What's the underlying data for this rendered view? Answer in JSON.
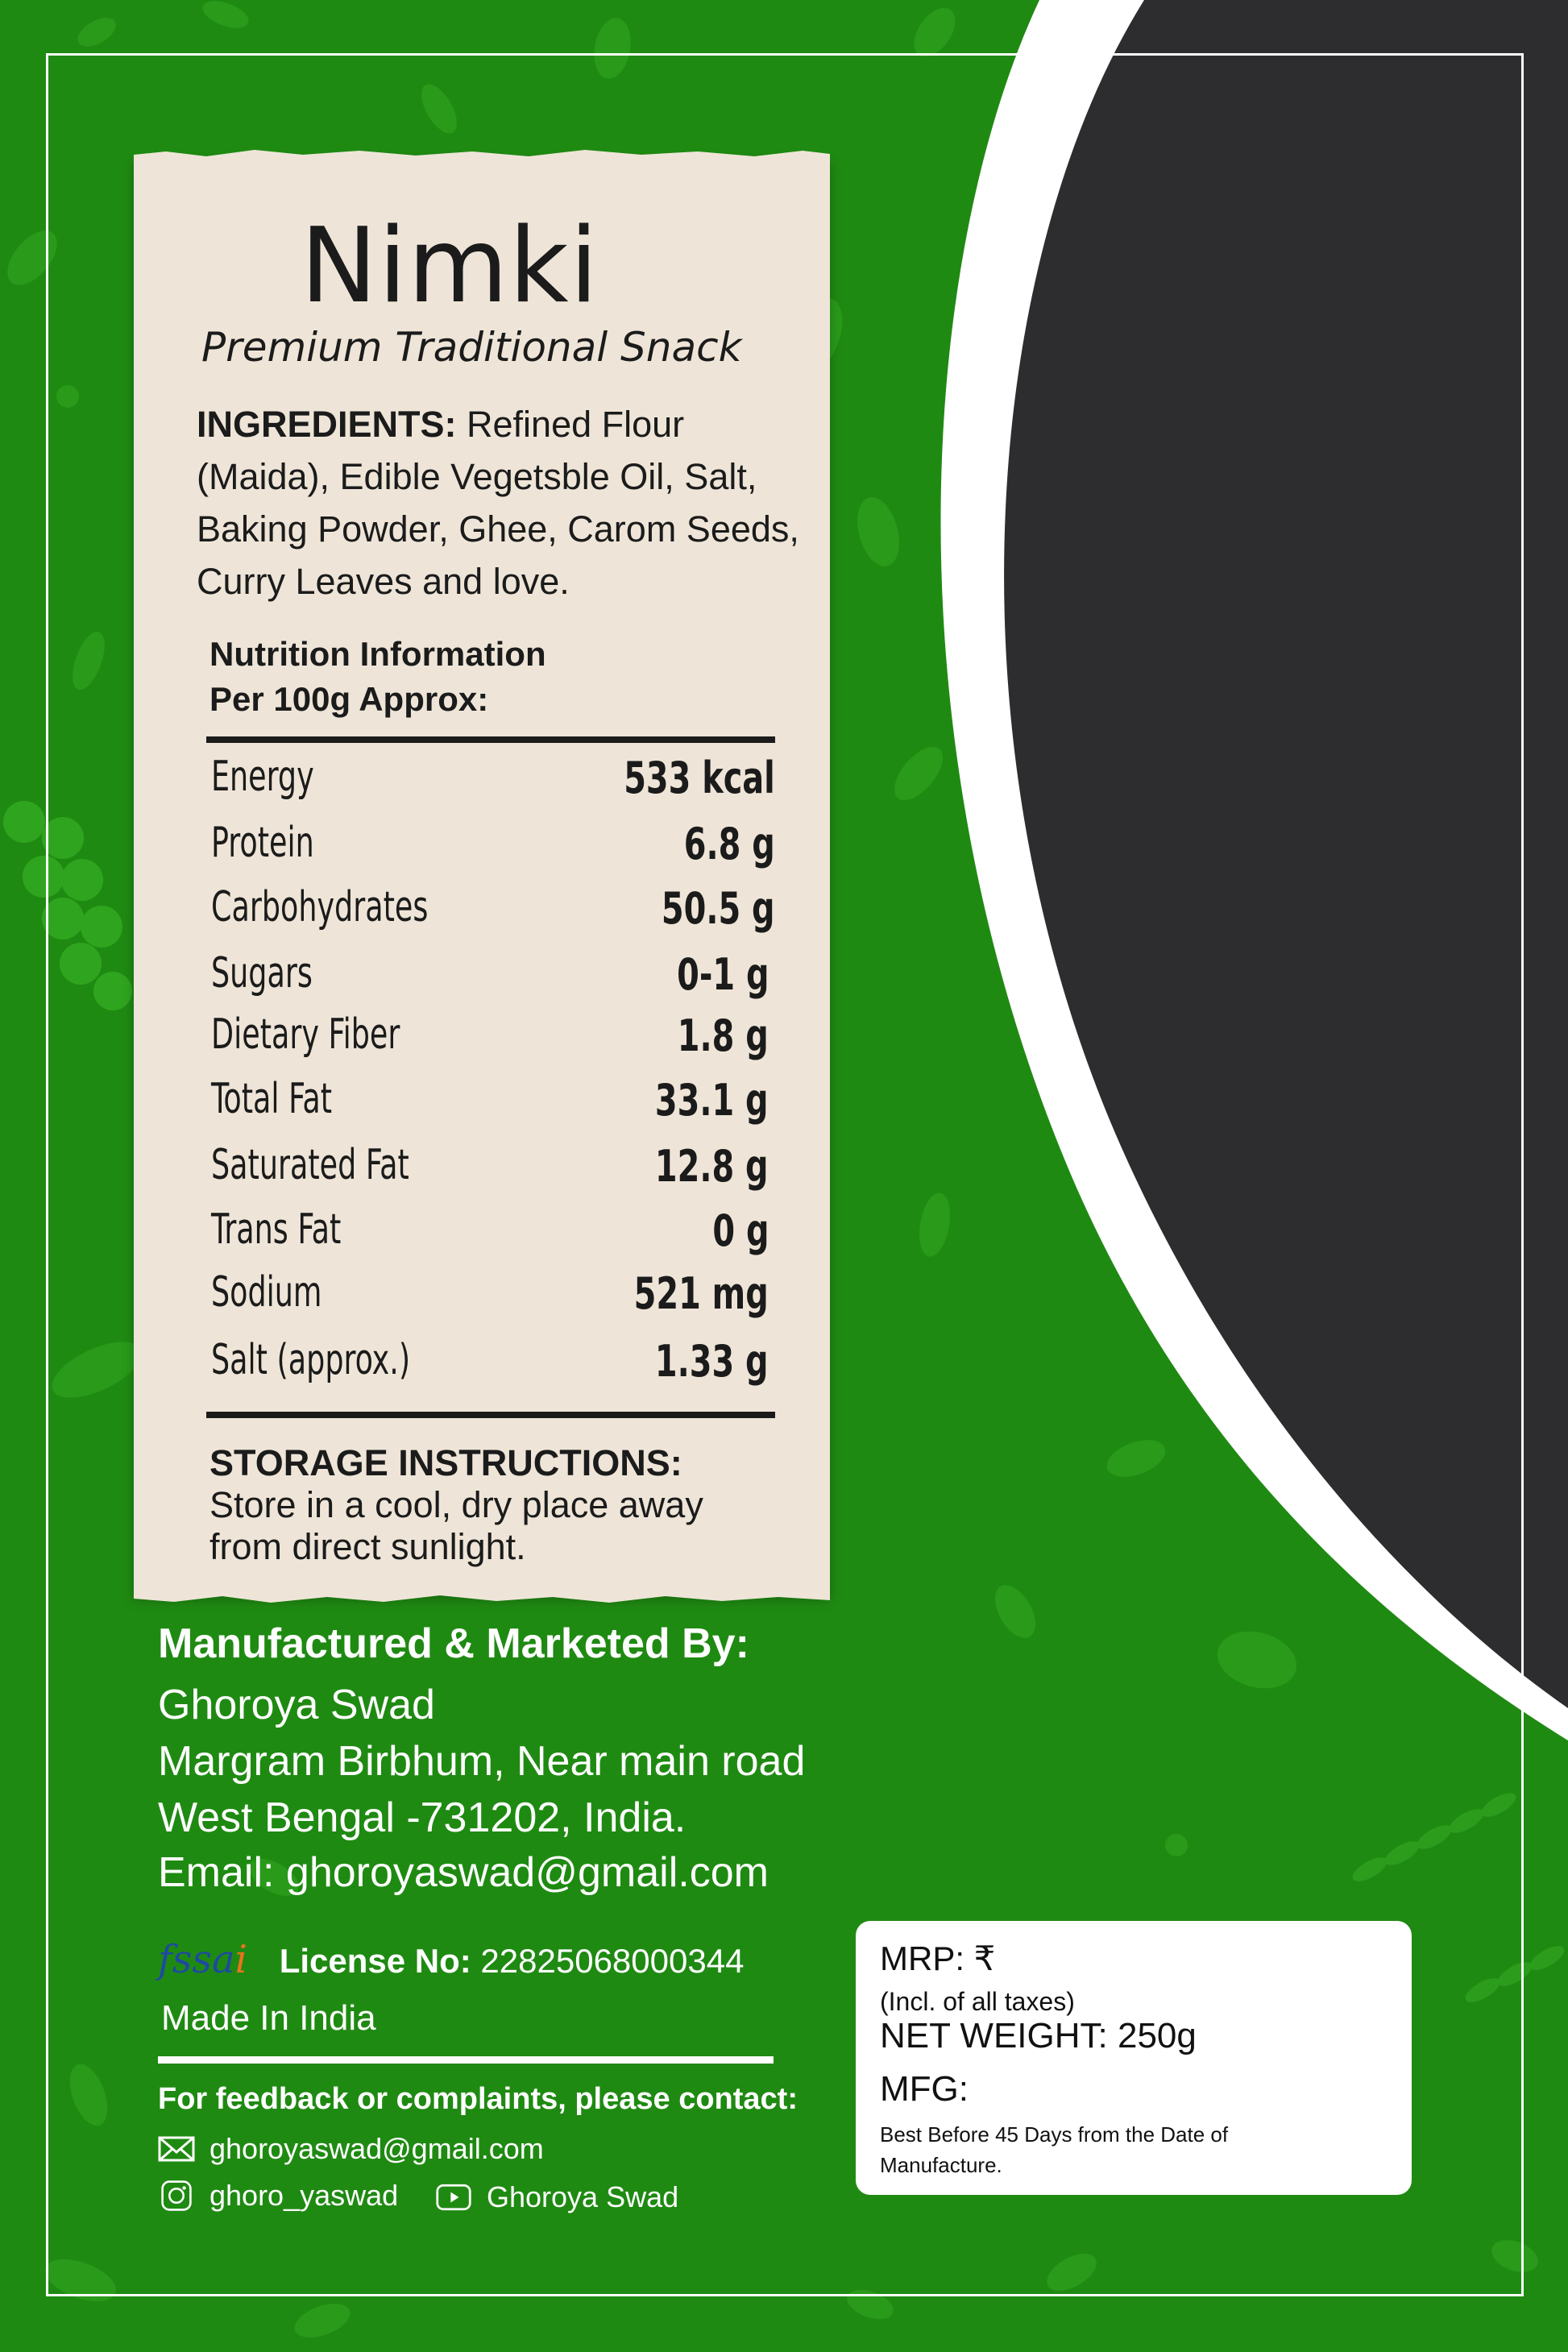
{
  "colors": {
    "background_green": "#1f8a12",
    "dark_panel": "#2d2d2f",
    "paper": "#eee5d8",
    "white": "#ffffff"
  },
  "product": {
    "name": "Nimki",
    "tagline": "Premium Traditional Snack"
  },
  "ingredients": {
    "label": "INGREDIENTS:",
    "text": "Refined Flour (Maida), Edible Vegetsble Oil, Salt, Baking Powder, Ghee, Carom Seeds, Curry Leaves and love."
  },
  "nutrition": {
    "heading_line1": "Nutrition Information",
    "heading_line2": "Per 100g Approx:",
    "rows": [
      {
        "label": "Energy",
        "value": "533 kcal"
      },
      {
        "label": "Protein",
        "value": "6.8 g"
      },
      {
        "label": "Carbohydrates",
        "value": "50.5 g"
      },
      {
        "label": "Sugars",
        "value": "0-1 g"
      },
      {
        "label": "Dietary Fiber",
        "value": "1.8 g"
      },
      {
        "label": "Total Fat",
        "value": "33.1 g"
      },
      {
        "label": "Saturated Fat",
        "value": "12.8  g"
      },
      {
        "label": "Trans Fat",
        "value": "0 g"
      },
      {
        "label": "Sodium",
        "value": "521 mg"
      },
      {
        "label": "Salt (approx.)",
        "value": "1.33 g"
      }
    ]
  },
  "storage": {
    "label": "STORAGE INSTRUCTIONS:",
    "line1": "Store in a cool, dry place away",
    "line2": "from direct sunlight."
  },
  "manufacturer": {
    "heading": "Manufactured & Marketed By:",
    "name": "Ghoroya Swad",
    "address1": "Margram Birbhum, Near main road",
    "address2": "West Bengal -731202, India.",
    "email_line": "Email: ghoroyaswad@gmail.com"
  },
  "license": {
    "logo_text": "fssai",
    "label": "License No:",
    "number": "22825068000344",
    "made_in": "Made In India"
  },
  "feedback": {
    "heading": "For feedback or complaints, please contact:",
    "email": "ghoroyaswad@gmail.com",
    "instagram": "ghoro_yaswad",
    "youtube": "Ghoroya Swad",
    "icons": [
      "mail-icon",
      "instagram-icon",
      "youtube-icon"
    ]
  },
  "pricing": {
    "mrp": "MRP: ₹",
    "tax_note": "(Incl. of all taxes)",
    "net_weight": "NET WEIGHT: 250g",
    "mfg": "MFG:",
    "best_before_line1": "Best Before 45 Days from the Date of",
    "best_before_line2": "Manufacture."
  }
}
